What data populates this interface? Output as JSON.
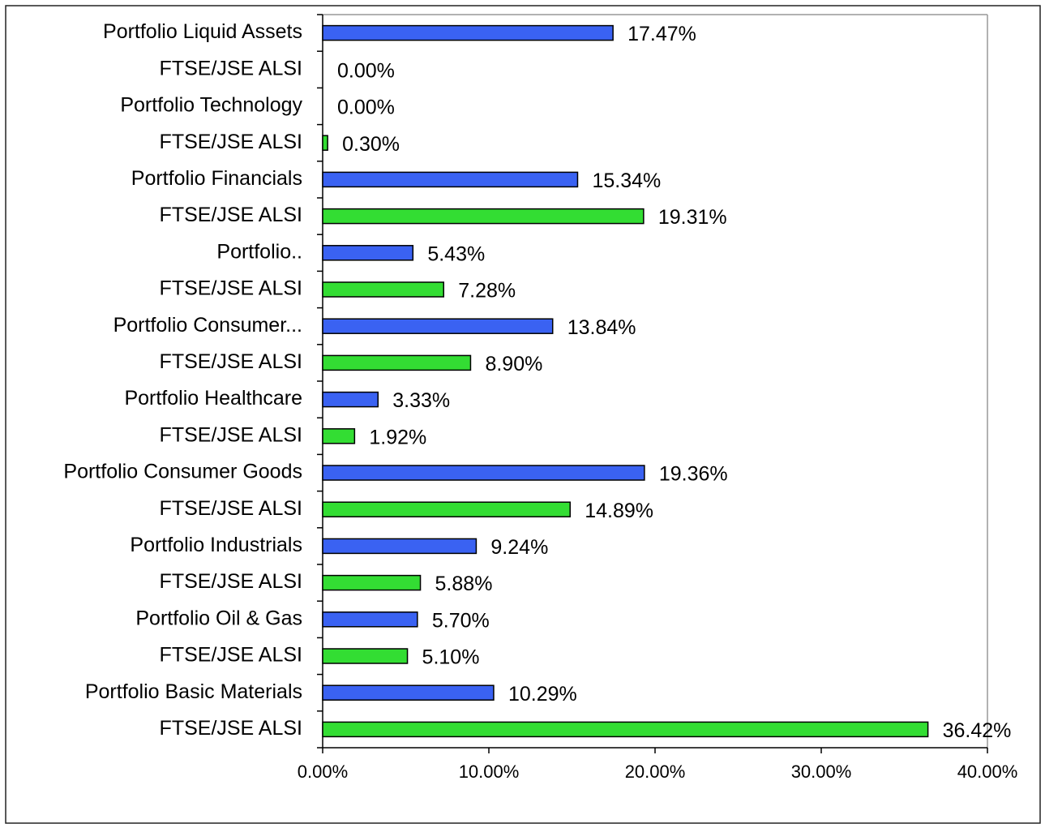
{
  "chart_data": {
    "type": "bar",
    "orientation": "horizontal",
    "categories": [
      "Portfolio Liquid Assets",
      "FTSE/JSE ALSI",
      "Portfolio Technology",
      "FTSE/JSE ALSI",
      "Portfolio Financials",
      "FTSE/JSE ALSI",
      "Portfolio..",
      "FTSE/JSE ALSI",
      "Portfolio Consumer...",
      "FTSE/JSE ALSI",
      "Portfolio Healthcare",
      "FTSE/JSE ALSI",
      "Portfolio Consumer Goods",
      "FTSE/JSE ALSI",
      "Portfolio Industrials",
      "FTSE/JSE ALSI",
      "Portfolio Oil & Gas",
      "FTSE/JSE ALSI",
      "Portfolio Basic Materials",
      "FTSE/JSE ALSI"
    ],
    "values": [
      17.47,
      0.0,
      0.0,
      0.3,
      15.34,
      19.31,
      5.43,
      7.28,
      13.84,
      8.9,
      3.33,
      1.92,
      19.36,
      14.89,
      9.24,
      5.88,
      5.7,
      5.1,
      10.29,
      36.42
    ],
    "value_labels": [
      "17.47%",
      "0.00%",
      "0.00%",
      "0.30%",
      "15.34%",
      "19.31%",
      "5.43%",
      "7.28%",
      "13.84%",
      "8.90%",
      "3.33%",
      "1.92%",
      "19.36%",
      "14.89%",
      "9.24%",
      "5.88%",
      "5.70%",
      "5.10%",
      "10.29%",
      "36.42%"
    ],
    "colors": [
      "#3a62f2",
      "#33dd33",
      "#3a62f2",
      "#33dd33",
      "#3a62f2",
      "#33dd33",
      "#3a62f2",
      "#33dd33",
      "#3a62f2",
      "#33dd33",
      "#3a62f2",
      "#33dd33",
      "#3a62f2",
      "#33dd33",
      "#3a62f2",
      "#33dd33",
      "#3a62f2",
      "#33dd33",
      "#3a62f2",
      "#33dd33"
    ],
    "xlim": [
      0,
      40
    ],
    "xticks": [
      {
        "value": 0,
        "label": "0.00%"
      },
      {
        "value": 10,
        "label": "10.00%"
      },
      {
        "value": 20,
        "label": "20.00%"
      },
      {
        "value": 30,
        "label": "30.00%"
      },
      {
        "value": 40,
        "label": "40.00%"
      }
    ]
  }
}
